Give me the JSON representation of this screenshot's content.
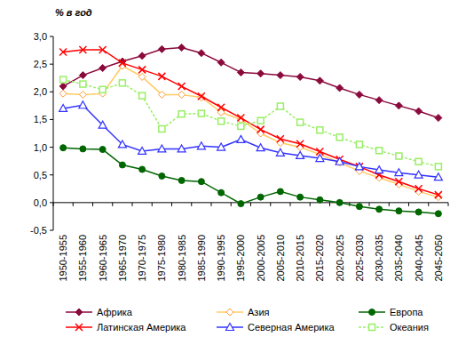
{
  "chart_data": {
    "type": "line",
    "y_label": "% в год",
    "categories": [
      "1950-1955",
      "1955-1960",
      "1960-1965",
      "1965-1970",
      "1970-1975",
      "1975-1980",
      "1980-1985",
      "1985-1990",
      "1990-1995",
      "1995-2000",
      "2000-2005",
      "2005-2010",
      "2010-2015",
      "2015-2020",
      "2020-2025",
      "2025-2030",
      "2030-2035",
      "2035-2040",
      "2040-2045",
      "2045-2050"
    ],
    "ylim": [
      -0.5,
      3.0
    ],
    "yticks": [
      {
        "value": -0.5,
        "label": "-0,5"
      },
      {
        "value": 0,
        "label": "0,0"
      },
      {
        "value": 0.5,
        "label": "0,5"
      },
      {
        "value": 1,
        "label": "1,0"
      },
      {
        "value": 1.5,
        "label": "1,5"
      },
      {
        "value": 2,
        "label": "2,0"
      },
      {
        "value": 2.5,
        "label": "2,5"
      },
      {
        "value": 3,
        "label": "3,0"
      }
    ],
    "grid": false,
    "legend": "bottom",
    "series": [
      {
        "name": "Африка",
        "color": "#8b0a3c",
        "marker": "diamond",
        "line_style": "solid",
        "values": [
          2.1,
          2.3,
          2.43,
          2.55,
          2.65,
          2.77,
          2.8,
          2.7,
          2.53,
          2.35,
          2.33,
          2.3,
          2.27,
          2.2,
          2.07,
          1.95,
          1.85,
          1.75,
          1.65,
          1.53
        ]
      },
      {
        "name": "Азия",
        "color": "#ffcc66",
        "marker": "diamond_open",
        "line_style": "solid",
        "values": [
          1.97,
          1.95,
          1.97,
          2.47,
          2.27,
          1.95,
          1.95,
          1.9,
          1.63,
          1.5,
          1.25,
          1.08,
          1.0,
          0.87,
          0.72,
          0.57,
          0.45,
          0.33,
          0.2,
          0.1
        ]
      },
      {
        "name": "Европа",
        "color": "#006600",
        "marker": "circle",
        "line_style": "solid",
        "values": [
          0.99,
          0.97,
          0.96,
          0.68,
          0.6,
          0.48,
          0.4,
          0.38,
          0.18,
          -0.02,
          0.1,
          0.2,
          0.1,
          0.05,
          0.0,
          -0.07,
          -0.12,
          -0.15,
          -0.17,
          -0.2
        ]
      },
      {
        "name": "Латинская Америка",
        "color": "#ff0000",
        "marker": "x",
        "line_style": "solid",
        "values": [
          2.72,
          2.76,
          2.76,
          2.52,
          2.4,
          2.28,
          2.1,
          1.92,
          1.72,
          1.53,
          1.32,
          1.15,
          1.06,
          0.92,
          0.78,
          0.65,
          0.5,
          0.38,
          0.25,
          0.14
        ]
      },
      {
        "name": "Северная Америка",
        "color": "#3333ff",
        "marker": "triangle_open",
        "line_style": "solid",
        "values": [
          1.7,
          1.76,
          1.4,
          1.05,
          0.93,
          0.97,
          0.97,
          1.02,
          1.0,
          1.14,
          0.99,
          0.9,
          0.85,
          0.8,
          0.74,
          0.65,
          0.59,
          0.54,
          0.5,
          0.46
        ]
      },
      {
        "name": "Океания",
        "color": "#99ee66",
        "marker": "square_open",
        "line_style": "dashed",
        "values": [
          2.22,
          2.14,
          2.04,
          2.16,
          1.93,
          1.33,
          1.6,
          1.61,
          1.47,
          1.38,
          1.48,
          1.74,
          1.45,
          1.31,
          1.18,
          1.05,
          0.94,
          0.84,
          0.74,
          0.65
        ]
      }
    ]
  }
}
